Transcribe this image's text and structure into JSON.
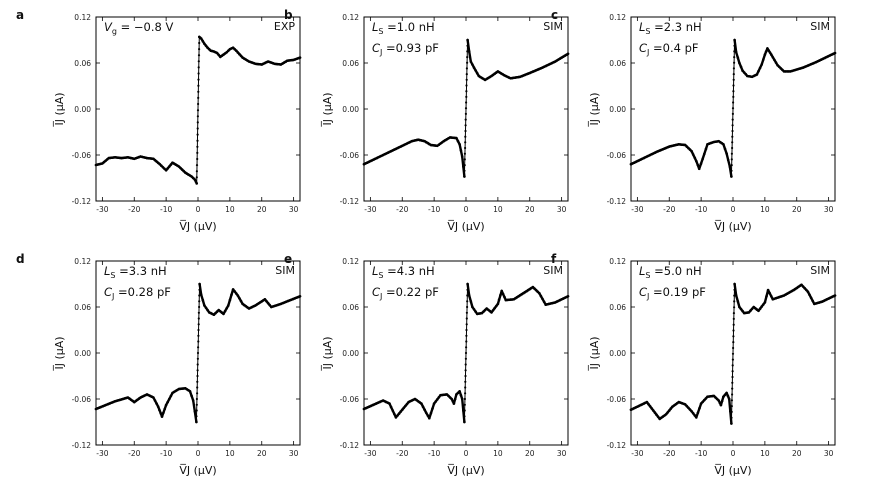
{
  "chart_data": [
    {
      "panel": "a",
      "type": "line",
      "tag": "EXP",
      "annotations": {
        "line1_sym": "V",
        "line1_sub": "g",
        "line1_rest": " = −0.8 V",
        "line2_sym": "",
        "line2_sub": "",
        "line2_rest": ""
      },
      "xlabel": "V̅J (μV)",
      "ylabel": "I̅J (μA)",
      "xlim": [
        -32,
        32
      ],
      "ylim": [
        -0.12,
        0.12
      ],
      "xticks": [
        -30,
        -20,
        -10,
        0,
        10,
        20,
        30
      ],
      "yticks": [
        "-0.12",
        "-0.06",
        "0.00",
        "0.06",
        "0.12"
      ],
      "left_branch": [
        [
          -32,
          -0.073
        ],
        [
          -30,
          -0.071
        ],
        [
          -28,
          -0.064
        ],
        [
          -26,
          -0.063
        ],
        [
          -24,
          -0.064
        ],
        [
          -22,
          -0.063
        ],
        [
          -20,
          -0.065
        ],
        [
          -18,
          -0.062
        ],
        [
          -16,
          -0.064
        ],
        [
          -14,
          -0.065
        ],
        [
          -12,
          -0.072
        ],
        [
          -10,
          -0.08
        ],
        [
          -8,
          -0.07
        ],
        [
          -6,
          -0.075
        ],
        [
          -4,
          -0.083
        ],
        [
          -2,
          -0.088
        ],
        [
          -1,
          -0.092
        ],
        [
          -0.4,
          -0.097
        ]
      ],
      "jump": [
        [
          -0.4,
          -0.097
        ],
        [
          0,
          0.0
        ],
        [
          0.4,
          0.094
        ]
      ],
      "right_branch": [
        [
          0.4,
          0.094
        ],
        [
          1,
          0.092
        ],
        [
          2,
          0.085
        ],
        [
          3,
          0.08
        ],
        [
          4,
          0.076
        ],
        [
          5,
          0.075
        ],
        [
          6,
          0.073
        ],
        [
          7,
          0.068
        ],
        [
          8,
          0.071
        ],
        [
          9,
          0.074
        ],
        [
          10,
          0.078
        ],
        [
          11,
          0.08
        ],
        [
          12,
          0.076
        ],
        [
          14,
          0.067
        ],
        [
          16,
          0.062
        ],
        [
          18,
          0.059
        ],
        [
          20,
          0.058
        ],
        [
          22,
          0.062
        ],
        [
          24,
          0.059
        ],
        [
          26,
          0.058
        ],
        [
          28,
          0.063
        ],
        [
          30,
          0.064
        ],
        [
          32,
          0.067
        ]
      ]
    },
    {
      "panel": "b",
      "type": "line",
      "tag": "SIM",
      "annotations": {
        "line1_sym": "L",
        "line1_sub": "S",
        "line1_rest": " =1.0 nH",
        "line2_sym": "C",
        "line2_sub": "J",
        "line2_rest": " =0.93 pF"
      },
      "xlabel": "V̅J (μV)",
      "ylabel": "I̅J (μA)",
      "xlim": [
        -32,
        32
      ],
      "ylim": [
        -0.12,
        0.12
      ],
      "xticks": [
        -30,
        -20,
        -10,
        0,
        10,
        20,
        30
      ],
      "yticks": [
        "-0.12",
        "-0.06",
        "0.00",
        "0.06",
        "0.12"
      ],
      "left_branch": [
        [
          -32,
          -0.072
        ],
        [
          -28,
          -0.064
        ],
        [
          -24,
          -0.056
        ],
        [
          -20,
          -0.048
        ],
        [
          -17,
          -0.042
        ],
        [
          -15,
          -0.04
        ],
        [
          -13,
          -0.042
        ],
        [
          -11,
          -0.047
        ],
        [
          -9,
          -0.048
        ],
        [
          -7,
          -0.042
        ],
        [
          -5,
          -0.037
        ],
        [
          -3,
          -0.038
        ],
        [
          -2,
          -0.046
        ],
        [
          -1.2,
          -0.062
        ],
        [
          -0.5,
          -0.088
        ]
      ],
      "jump": [
        [
          -0.5,
          -0.088
        ],
        [
          0,
          0.0
        ],
        [
          0.5,
          0.09
        ]
      ],
      "right_branch": [
        [
          0.5,
          0.09
        ],
        [
          1,
          0.075
        ],
        [
          1.5,
          0.062
        ],
        [
          2.5,
          0.054
        ],
        [
          4,
          0.043
        ],
        [
          6,
          0.038
        ],
        [
          8,
          0.043
        ],
        [
          10,
          0.049
        ],
        [
          12,
          0.044
        ],
        [
          14,
          0.04
        ],
        [
          17,
          0.042
        ],
        [
          20,
          0.047
        ],
        [
          24,
          0.054
        ],
        [
          28,
          0.062
        ],
        [
          32,
          0.072
        ]
      ]
    },
    {
      "panel": "c",
      "type": "line",
      "tag": "SIM",
      "annotations": {
        "line1_sym": "L",
        "line1_sub": "S",
        "line1_rest": " =2.3 nH",
        "line2_sym": "C",
        "line2_sub": "J",
        "line2_rest": " =0.4 pF"
      },
      "xlabel": "V̅J (μV)",
      "ylabel": "I̅J (μA)",
      "xlim": [
        -32,
        32
      ],
      "ylim": [
        -0.12,
        0.12
      ],
      "xticks": [
        -30,
        -20,
        -10,
        0,
        10,
        20,
        30
      ],
      "yticks": [
        "-0.12",
        "-0.06",
        "0.00",
        "0.06",
        "0.12"
      ],
      "left_branch": [
        [
          -32,
          -0.072
        ],
        [
          -28,
          -0.064
        ],
        [
          -24,
          -0.056
        ],
        [
          -20,
          -0.049
        ],
        [
          -17,
          -0.046
        ],
        [
          -15,
          -0.047
        ],
        [
          -13,
          -0.055
        ],
        [
          -11.5,
          -0.068
        ],
        [
          -10.6,
          -0.078
        ],
        [
          -9.5,
          -0.065
        ],
        [
          -8,
          -0.046
        ],
        [
          -6,
          -0.043
        ],
        [
          -4.5,
          -0.042
        ],
        [
          -3,
          -0.046
        ],
        [
          -2,
          -0.058
        ],
        [
          -1,
          -0.075
        ],
        [
          -0.5,
          -0.088
        ]
      ],
      "jump": [
        [
          -0.5,
          -0.088
        ],
        [
          0,
          0.0
        ],
        [
          0.5,
          0.09
        ]
      ],
      "right_branch": [
        [
          0.5,
          0.09
        ],
        [
          1,
          0.074
        ],
        [
          2,
          0.06
        ],
        [
          3,
          0.05
        ],
        [
          4.5,
          0.043
        ],
        [
          6,
          0.042
        ],
        [
          7.5,
          0.045
        ],
        [
          9,
          0.058
        ],
        [
          10,
          0.071
        ],
        [
          10.8,
          0.079
        ],
        [
          12,
          0.071
        ],
        [
          14,
          0.057
        ],
        [
          16,
          0.049
        ],
        [
          18,
          0.049
        ],
        [
          22,
          0.054
        ],
        [
          26,
          0.061
        ],
        [
          32,
          0.073
        ]
      ]
    },
    {
      "panel": "d",
      "type": "line",
      "tag": "SIM",
      "annotations": {
        "line1_sym": "L",
        "line1_sub": "S",
        "line1_rest": " =3.3 nH",
        "line2_sym": "C",
        "line2_sub": "J",
        "line2_rest": " =0.28 pF"
      },
      "xlabel": "V̅J (μV)",
      "ylabel": "I̅J (μA)",
      "xlim": [
        -32,
        32
      ],
      "ylim": [
        -0.12,
        0.12
      ],
      "xticks": [
        -30,
        -20,
        -10,
        0,
        10,
        20,
        30
      ],
      "yticks": [
        "-0.12",
        "-0.06",
        "0.00",
        "0.06",
        "0.12"
      ],
      "left_branch": [
        [
          -32,
          -0.073
        ],
        [
          -26,
          -0.063
        ],
        [
          -22,
          -0.058
        ],
        [
          -20,
          -0.064
        ],
        [
          -18,
          -0.058
        ],
        [
          -16,
          -0.054
        ],
        [
          -14,
          -0.058
        ],
        [
          -12.5,
          -0.07
        ],
        [
          -11.3,
          -0.083
        ],
        [
          -10,
          -0.068
        ],
        [
          -8,
          -0.052
        ],
        [
          -6,
          -0.047
        ],
        [
          -4,
          -0.046
        ],
        [
          -2.5,
          -0.05
        ],
        [
          -1.5,
          -0.062
        ],
        [
          -0.5,
          -0.09
        ]
      ],
      "jump": [
        [
          -0.5,
          -0.09
        ],
        [
          0,
          0.0
        ],
        [
          0.5,
          0.09
        ]
      ],
      "right_branch": [
        [
          0.5,
          0.09
        ],
        [
          1,
          0.076
        ],
        [
          2,
          0.062
        ],
        [
          3.5,
          0.053
        ],
        [
          5,
          0.05
        ],
        [
          6.5,
          0.056
        ],
        [
          8,
          0.051
        ],
        [
          9.5,
          0.062
        ],
        [
          11,
          0.083
        ],
        [
          12.5,
          0.075
        ],
        [
          14,
          0.064
        ],
        [
          16,
          0.058
        ],
        [
          18,
          0.062
        ],
        [
          21,
          0.07
        ],
        [
          23,
          0.06
        ],
        [
          26,
          0.064
        ],
        [
          32,
          0.074
        ]
      ]
    },
    {
      "panel": "e",
      "type": "line",
      "tag": "SIM",
      "annotations": {
        "line1_sym": "L",
        "line1_sub": "S",
        "line1_rest": " =4.3 nH",
        "line2_sym": "C",
        "line2_sub": "J",
        "line2_rest": " =0.22 pF"
      },
      "xlabel": "V̅J (μV)",
      "ylabel": "I̅J (μA)",
      "xlim": [
        -32,
        32
      ],
      "ylim": [
        -0.12,
        0.12
      ],
      "xticks": [
        -30,
        -20,
        -10,
        0,
        10,
        20,
        30
      ],
      "yticks": [
        "-0.12",
        "-0.06",
        "0.00",
        "0.06",
        "0.12"
      ],
      "left_branch": [
        [
          -32,
          -0.073
        ],
        [
          -26,
          -0.062
        ],
        [
          -24,
          -0.066
        ],
        [
          -22,
          -0.084
        ],
        [
          -20,
          -0.074
        ],
        [
          -18,
          -0.064
        ],
        [
          -16,
          -0.06
        ],
        [
          -14,
          -0.066
        ],
        [
          -12.5,
          -0.078
        ],
        [
          -11.5,
          -0.085
        ],
        [
          -10,
          -0.066
        ],
        [
          -8,
          -0.055
        ],
        [
          -6,
          -0.054
        ],
        [
          -4.5,
          -0.06
        ],
        [
          -3.8,
          -0.066
        ],
        [
          -3,
          -0.054
        ],
        [
          -2,
          -0.05
        ],
        [
          -1.2,
          -0.06
        ],
        [
          -0.5,
          -0.09
        ]
      ],
      "jump": [
        [
          -0.5,
          -0.09
        ],
        [
          0,
          0.0
        ],
        [
          0.5,
          0.09
        ]
      ],
      "right_branch": [
        [
          0.5,
          0.09
        ],
        [
          1,
          0.075
        ],
        [
          2,
          0.06
        ],
        [
          3.5,
          0.051
        ],
        [
          5,
          0.052
        ],
        [
          6.5,
          0.058
        ],
        [
          8,
          0.053
        ],
        [
          10,
          0.064
        ],
        [
          11.2,
          0.081
        ],
        [
          12.5,
          0.069
        ],
        [
          15,
          0.07
        ],
        [
          18,
          0.078
        ],
        [
          21,
          0.086
        ],
        [
          23,
          0.078
        ],
        [
          25,
          0.063
        ],
        [
          28,
          0.066
        ],
        [
          32,
          0.074
        ]
      ]
    },
    {
      "panel": "f",
      "type": "line",
      "tag": "SIM",
      "annotations": {
        "line1_sym": "L",
        "line1_sub": "S",
        "line1_rest": " =5.0 nH",
        "line2_sym": "C",
        "line2_sub": "J",
        "line2_rest": " =0.19 pF"
      },
      "xlabel": "V̅J (μV)",
      "ylabel": "I̅J (μA)",
      "xlim": [
        -32,
        32
      ],
      "ylim": [
        -0.12,
        0.12
      ],
      "xticks": [
        -30,
        -20,
        -10,
        0,
        10,
        20,
        30
      ],
      "yticks": [
        "-0.12",
        "-0.06",
        "0.00",
        "0.06",
        "0.12"
      ],
      "left_branch": [
        [
          -32,
          -0.074
        ],
        [
          -27,
          -0.064
        ],
        [
          -25,
          -0.075
        ],
        [
          -23,
          -0.086
        ],
        [
          -21,
          -0.08
        ],
        [
          -19,
          -0.07
        ],
        [
          -17,
          -0.064
        ],
        [
          -15,
          -0.067
        ],
        [
          -13,
          -0.076
        ],
        [
          -11.5,
          -0.084
        ],
        [
          -10,
          -0.066
        ],
        [
          -8,
          -0.057
        ],
        [
          -6,
          -0.056
        ],
        [
          -4.5,
          -0.062
        ],
        [
          -3.8,
          -0.068
        ],
        [
          -3,
          -0.057
        ],
        [
          -2,
          -0.052
        ],
        [
          -1.2,
          -0.06
        ],
        [
          -0.5,
          -0.092
        ]
      ],
      "jump": [
        [
          -0.5,
          -0.092
        ],
        [
          0,
          0.0
        ],
        [
          0.5,
          0.09
        ]
      ],
      "right_branch": [
        [
          0.5,
          0.09
        ],
        [
          1,
          0.075
        ],
        [
          2,
          0.06
        ],
        [
          3.5,
          0.052
        ],
        [
          5,
          0.053
        ],
        [
          6.5,
          0.06
        ],
        [
          8,
          0.055
        ],
        [
          10,
          0.066
        ],
        [
          11,
          0.082
        ],
        [
          12.5,
          0.07
        ],
        [
          16,
          0.075
        ],
        [
          19,
          0.082
        ],
        [
          21.5,
          0.089
        ],
        [
          23.5,
          0.08
        ],
        [
          25.5,
          0.064
        ],
        [
          28,
          0.067
        ],
        [
          32,
          0.075
        ]
      ]
    }
  ]
}
